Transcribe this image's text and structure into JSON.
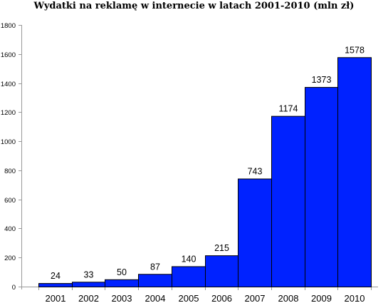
{
  "chart_data": {
    "type": "bar",
    "title": "Wydatki na reklamę w internecie w latach 2001-2010 (mln zł)",
    "xlabel": "",
    "ylabel": "",
    "categories": [
      "2001",
      "2002",
      "2003",
      "2004",
      "2005",
      "2006",
      "2007",
      "2008",
      "2009",
      "2010"
    ],
    "values": [
      24,
      33,
      50,
      87,
      140,
      215,
      743,
      1174,
      1373,
      1578
    ],
    "data_labels": [
      "24",
      "33",
      "50",
      "87",
      "140",
      "215",
      "743",
      "1174",
      "1373",
      "1578"
    ],
    "ylim": [
      0,
      1800
    ],
    "yticks": [
      0,
      200,
      400,
      600,
      800,
      1000,
      1200,
      1400,
      1600,
      1800
    ],
    "grid": false,
    "legend": "none",
    "bar_color": "#0022ff",
    "bar_edge_color": "#000000",
    "axis_color": "#999999"
  }
}
